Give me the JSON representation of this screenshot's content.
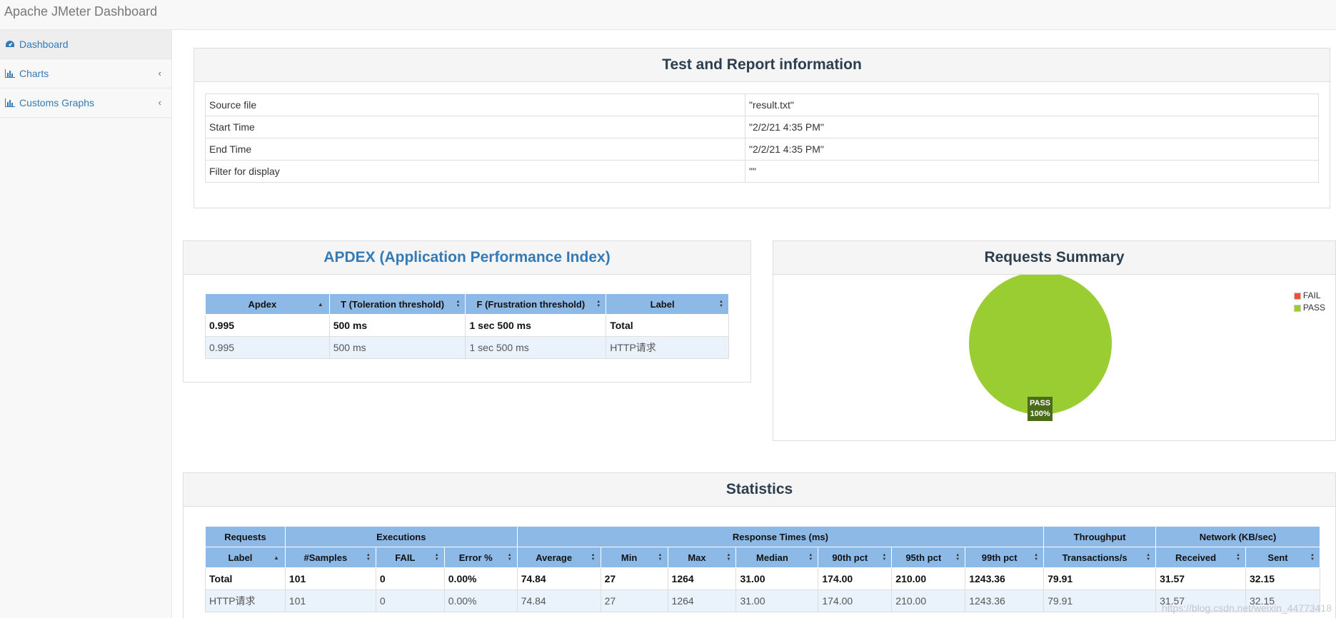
{
  "app": {
    "title": "Apache JMeter Dashboard"
  },
  "sidebar": {
    "items": [
      {
        "label": "Dashboard",
        "icon": "dashboard-icon"
      },
      {
        "label": "Charts",
        "icon": "bar-chart-icon"
      },
      {
        "label": "Customs Graphs",
        "icon": "bar-chart-icon"
      }
    ]
  },
  "report_info": {
    "title": "Test and Report information",
    "rows": [
      {
        "key": "Source file",
        "value": "\"result.txt\""
      },
      {
        "key": "Start Time",
        "value": "\"2/2/21 4:35 PM\""
      },
      {
        "key": "End Time",
        "value": "\"2/2/21 4:35 PM\""
      },
      {
        "key": "Filter for display",
        "value": "\"\""
      }
    ]
  },
  "apdex": {
    "title": "APDEX (Application Performance Index)",
    "headers": [
      "Apdex",
      "T (Toleration threshold)",
      "F (Frustration threshold)",
      "Label"
    ],
    "rows": [
      [
        "0.995",
        "500 ms",
        "1 sec 500 ms",
        "Total"
      ],
      [
        "0.995",
        "500 ms",
        "1 sec 500 ms",
        "HTTP请求"
      ]
    ]
  },
  "requests_summary": {
    "title": "Requests Summary",
    "legend": [
      "FAIL",
      "PASS"
    ],
    "pie_label": {
      "name": "PASS",
      "percent": "100%"
    },
    "colors": {
      "fail": "#f04f33",
      "pass": "#9acd32"
    }
  },
  "chart_data": {
    "type": "pie",
    "categories": [
      "FAIL",
      "PASS"
    ],
    "values": [
      0,
      100
    ],
    "title": "Requests Summary"
  },
  "statistics": {
    "title": "Statistics",
    "groups": [
      "Requests",
      "Executions",
      "Response Times (ms)",
      "Throughput",
      "Network (KB/sec)"
    ],
    "headers": [
      "Label",
      "#Samples",
      "FAIL",
      "Error %",
      "Average",
      "Min",
      "Max",
      "Median",
      "90th pct",
      "95th pct",
      "99th pct",
      "Transactions/s",
      "Received",
      "Sent"
    ],
    "rows": [
      [
        "Total",
        "101",
        "0",
        "0.00%",
        "74.84",
        "27",
        "1264",
        "31.00",
        "174.00",
        "210.00",
        "1243.36",
        "79.91",
        "31.57",
        "32.15"
      ],
      [
        "HTTP请求",
        "101",
        "0",
        "0.00%",
        "74.84",
        "27",
        "1264",
        "31.00",
        "174.00",
        "210.00",
        "1243.36",
        "79.91",
        "31.57",
        "32.15"
      ]
    ]
  },
  "watermark": "https://blog.csdn.net/weixin_44773418"
}
